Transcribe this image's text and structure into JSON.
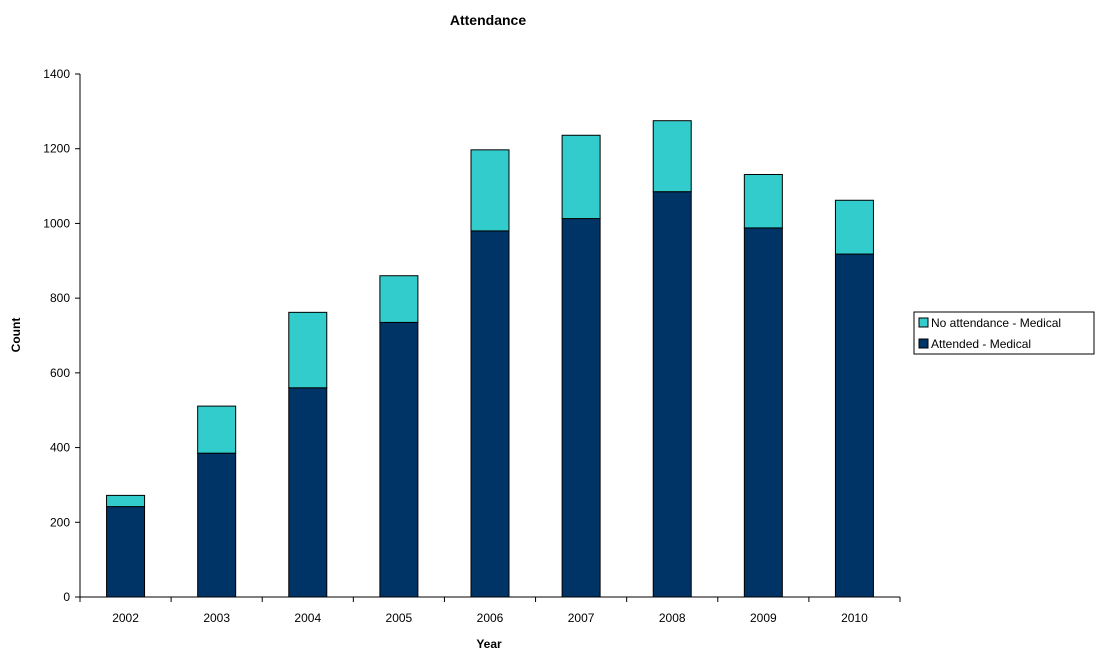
{
  "chart_data": {
    "type": "bar",
    "stacked": true,
    "title": "Attendance",
    "xlabel": "Year",
    "ylabel": "Count",
    "ylim": [
      0,
      1400
    ],
    "ytick_step": 200,
    "yticks": [
      "0",
      "200",
      "400",
      "600",
      "800",
      "1000",
      "1200",
      "1400"
    ],
    "grid": false,
    "legend_position": "right",
    "categories": [
      "2002",
      "2003",
      "2004",
      "2005",
      "2006",
      "2007",
      "2008",
      "2009",
      "2010"
    ],
    "series": [
      {
        "name": "Attended - Medical",
        "color": "#003366",
        "values": [
          242,
          385,
          560,
          735,
          980,
          1013,
          1085,
          988,
          918
        ]
      },
      {
        "name": "No attendance - Medical",
        "color": "#33CCCC",
        "values": [
          30,
          126,
          202,
          125,
          217,
          223,
          190,
          143,
          144
        ]
      }
    ]
  }
}
